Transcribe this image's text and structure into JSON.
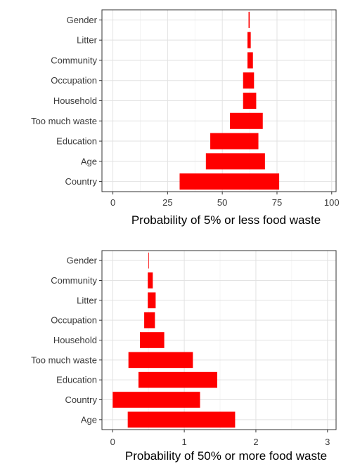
{
  "chart_data": [
    {
      "type": "bar",
      "subtype": "floating-horizontal-range",
      "categories": [
        "Gender",
        "Litter",
        "Community",
        "Occupation",
        "Household",
        "Too much waste",
        "Education",
        "Age",
        "Country"
      ],
      "ranges": [
        [
          62,
          62.5
        ],
        [
          61.5,
          63
        ],
        [
          61.5,
          64
        ],
        [
          59.5,
          64.5
        ],
        [
          59.5,
          65.5
        ],
        [
          53.5,
          68.5
        ],
        [
          44.5,
          66.5
        ],
        [
          42.5,
          69.5
        ],
        [
          30.5,
          76
        ]
      ],
      "x_ticks": [
        "0",
        "25",
        "50",
        "75",
        "100"
      ],
      "xlim": [
        -5,
        102
      ],
      "xlabel": "Probability  of 5% or less food waste",
      "grid": true,
      "bar_color": "#ff0000"
    },
    {
      "type": "bar",
      "subtype": "floating-horizontal-range",
      "categories": [
        "Gender",
        "Community",
        "Litter",
        "Occupation",
        "Household",
        "Too much waste",
        "Education",
        "Country",
        "Age"
      ],
      "ranges": [
        [
          0.5,
          0.5
        ],
        [
          0.49,
          0.56
        ],
        [
          0.49,
          0.6
        ],
        [
          0.44,
          0.59
        ],
        [
          0.38,
          0.72
        ],
        [
          0.22,
          1.12
        ],
        [
          0.36,
          1.46
        ],
        [
          0.0,
          1.22
        ],
        [
          0.21,
          1.71
        ]
      ],
      "x_ticks": [
        "0",
        "1",
        "2",
        "3"
      ],
      "xlim": [
        -0.15,
        3.12
      ],
      "xlabel": "Probability  of 50% or more food waste",
      "grid": true,
      "bar_color": "#ff0000"
    }
  ]
}
